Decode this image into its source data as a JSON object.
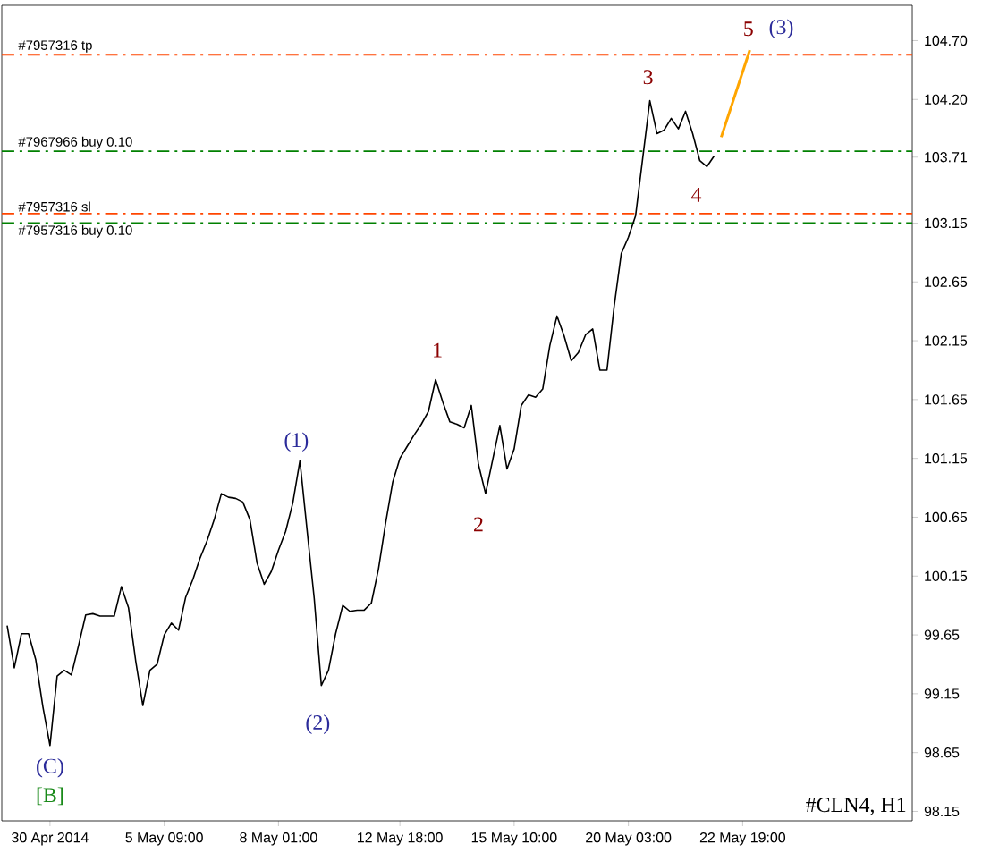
{
  "chart_data": {
    "type": "line",
    "categories": [
      null,
      null,
      null,
      null,
      null,
      null,
      "30 Apr 2014",
      null,
      null,
      null,
      null,
      null,
      null,
      null,
      null,
      null,
      null,
      null,
      null,
      null,
      null,
      null,
      "5 May 09:00",
      null,
      null,
      null,
      null,
      null,
      null,
      null,
      null,
      null,
      null,
      null,
      null,
      null,
      null,
      null,
      "8 May 01:00",
      null,
      null,
      null,
      null,
      null,
      null,
      null,
      null,
      null,
      null,
      null,
      null,
      null,
      null,
      null,
      null,
      "12 May 18:00",
      null,
      null,
      null,
      null,
      null,
      null,
      null,
      null,
      null,
      null,
      null,
      null,
      null,
      null,
      null,
      "15 May 10:00",
      null,
      null,
      null,
      null,
      null,
      null,
      null,
      null,
      null,
      null,
      null,
      null,
      null,
      null,
      null,
      "20 May 03:00",
      null,
      null,
      null,
      null,
      null,
      null,
      null,
      null,
      null,
      null,
      null,
      null,
      null,
      null,
      null,
      "22 May 19:00",
      null,
      null,
      null,
      null,
      null,
      null,
      null,
      null,
      null,
      null,
      null,
      null,
      null,
      null,
      null,
      null,
      null,
      null,
      null,
      null,
      null,
      null,
      null
    ],
    "ylim": [
      98.07,
      105.0
    ],
    "yticks": [
      {
        "value": 98.15,
        "label": "98.15"
      },
      {
        "value": 98.65,
        "label": "98.65"
      },
      {
        "value": 99.15,
        "label": "99.15"
      },
      {
        "value": 99.65,
        "label": "99.65"
      },
      {
        "value": 100.15,
        "label": "100.15"
      },
      {
        "value": 100.65,
        "label": "100.65"
      },
      {
        "value": 101.15,
        "label": "101.15"
      },
      {
        "value": 101.65,
        "label": "101.65"
      },
      {
        "value": 102.15,
        "label": "102.15"
      },
      {
        "value": 102.65,
        "label": "102.65"
      },
      {
        "value": 103.15,
        "label": "103.15"
      },
      {
        "value": 103.71,
        "label": "103.71"
      },
      {
        "value": 104.2,
        "label": "104.20"
      },
      {
        "value": 104.7,
        "label": "104.70"
      }
    ],
    "series": [
      {
        "color": "#000000",
        "values": [
          99.73,
          99.37,
          99.66,
          99.66,
          99.44,
          99.04,
          98.71,
          99.3,
          99.35,
          99.31,
          99.56,
          99.82,
          99.83,
          99.81,
          99.81,
          99.81,
          100.06,
          99.88,
          99.43,
          99.05,
          99.35,
          99.4,
          99.65,
          99.75,
          99.69,
          99.97,
          100.12,
          100.3,
          100.45,
          100.63,
          100.85,
          100.82,
          100.81,
          100.78,
          100.63,
          100.26,
          100.08,
          100.19,
          100.37,
          100.53,
          100.77,
          101.13,
          100.54,
          99.96,
          99.22,
          99.35,
          99.66,
          99.9,
          99.85,
          99.86,
          99.86,
          99.92,
          100.21,
          100.6,
          100.95,
          101.15,
          101.25,
          101.35,
          101.44,
          101.55,
          101.82,
          101.63,
          101.46,
          101.44,
          101.41,
          101.6,
          101.1,
          100.85,
          101.14,
          101.43,
          101.06,
          101.23,
          101.6,
          101.69,
          101.67,
          101.74,
          102.11,
          102.36,
          102.19,
          101.98,
          102.05,
          102.2,
          102.25,
          101.9,
          101.9,
          102.44,
          102.89,
          103.03,
          103.21,
          103.7,
          104.19,
          103.91,
          103.94,
          104.04,
          103.95,
          104.1,
          103.91,
          103.68,
          103.63,
          103.72,
          null,
          null,
          null,
          null,
          null,
          null,
          null,
          null,
          null,
          null,
          null,
          null,
          null,
          null,
          null,
          null,
          null,
          null,
          null,
          null,
          null,
          null,
          null,
          null,
          null,
          null,
          null
        ]
      },
      {
        "color": "#ffa500",
        "values": [
          null,
          null,
          null,
          null,
          null,
          null,
          null,
          null,
          null,
          null,
          null,
          null,
          null,
          null,
          null,
          null,
          null,
          null,
          null,
          null,
          null,
          null,
          null,
          null,
          null,
          null,
          null,
          null,
          null,
          null,
          null,
          null,
          null,
          null,
          null,
          null,
          null,
          null,
          null,
          null,
          null,
          null,
          null,
          null,
          null,
          null,
          null,
          null,
          null,
          null,
          null,
          null,
          null,
          null,
          null,
          null,
          null,
          null,
          null,
          null,
          null,
          null,
          null,
          null,
          null,
          null,
          null,
          null,
          null,
          null,
          null,
          null,
          null,
          null,
          null,
          null,
          null,
          null,
          null,
          null,
          null,
          null,
          null,
          null,
          null,
          null,
          null,
          null,
          null,
          null,
          null,
          null,
          null,
          null,
          null,
          null,
          null,
          null,
          null,
          null,
          103.88,
          null,
          null,
          null,
          104.62,
          null,
          null,
          null,
          null,
          null,
          null,
          null,
          null,
          null,
          null,
          null,
          null,
          null,
          null,
          null,
          null,
          null,
          null,
          null,
          null,
          null,
          null
        ]
      }
    ],
    "ref_lines": [
      {
        "axis": "y",
        "value": 104.58,
        "label": "#7957316 tp",
        "color": "#ff4500",
        "line_style": "dashed"
      },
      {
        "axis": "y",
        "value": 103.76,
        "label": "#7967966 buy 0.10",
        "color": "#008000",
        "line_style": "dashed"
      },
      {
        "axis": "y",
        "value": 103.23,
        "label": "#7957316 sl",
        "color": "#ff4500",
        "line_style": "dashed"
      },
      {
        "axis": "y",
        "value": 103.15,
        "label": "#7957316 buy 0.10",
        "color": "#008000",
        "line_style": "dashed"
      }
    ],
    "annotations": [
      "(C)",
      "[B]",
      "(1)",
      "(2)",
      "1",
      "2",
      "3",
      "4",
      "5",
      "(3)",
      "#CLN4, H1"
    ]
  }
}
